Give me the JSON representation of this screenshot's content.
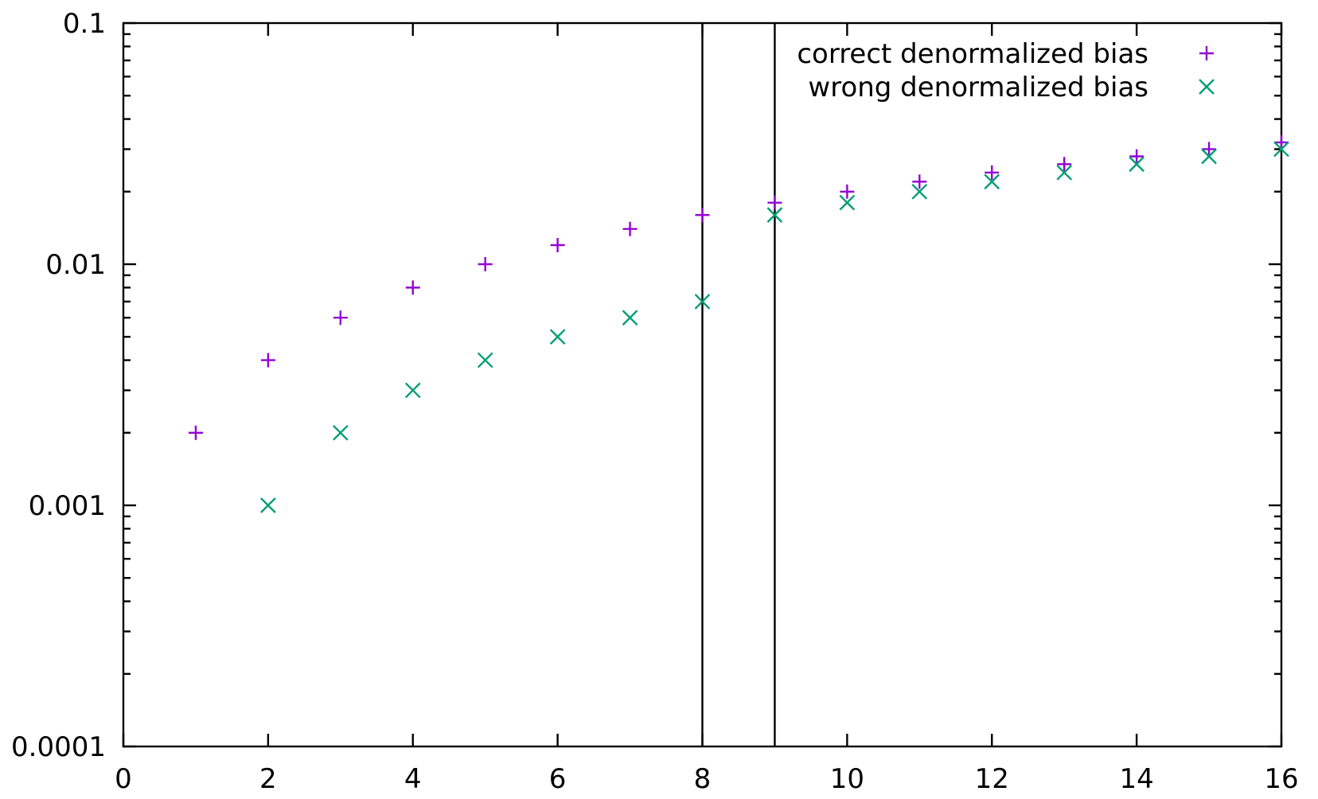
{
  "chart_data": {
    "type": "scatter",
    "title": "",
    "xlabel": "",
    "ylabel": "",
    "x_scale": "linear",
    "y_scale": "log",
    "xlim": [
      0,
      16
    ],
    "ylim": [
      0.0001,
      0.1
    ],
    "x_ticks": [
      0,
      2,
      4,
      6,
      8,
      10,
      12,
      14,
      16
    ],
    "x_tick_labels": [
      "0",
      "2",
      "4",
      "6",
      "8",
      "10",
      "12",
      "14",
      "16"
    ],
    "y_ticks": [
      0.0001,
      0.001,
      0.01,
      0.1
    ],
    "y_tick_labels": [
      "0.0001",
      "0.001",
      "0.01",
      "0.1"
    ],
    "grid": false,
    "legend_position": "top-right",
    "vertical_lines": [
      8,
      9
    ],
    "series": [
      {
        "name": "correct denormalized bias",
        "marker": "plus",
        "color": "#9400d3",
        "x": [
          1,
          2,
          3,
          4,
          5,
          6,
          7,
          8,
          9,
          10,
          11,
          12,
          13,
          14,
          15,
          16
        ],
        "y": [
          0.002,
          0.004,
          0.006,
          0.008,
          0.01,
          0.012,
          0.014,
          0.016,
          0.018,
          0.02,
          0.022,
          0.024,
          0.026,
          0.028,
          0.03,
          0.032
        ]
      },
      {
        "name": "wrong denormalized bias",
        "marker": "cross",
        "color": "#009e73",
        "x": [
          2,
          3,
          4,
          5,
          6,
          7,
          8,
          9,
          10,
          11,
          12,
          13,
          14,
          15,
          16
        ],
        "y": [
          0.001,
          0.002,
          0.003,
          0.004,
          0.005,
          0.006,
          0.007,
          0.016,
          0.018,
          0.02,
          0.022,
          0.024,
          0.026,
          0.028,
          0.03
        ]
      }
    ]
  }
}
